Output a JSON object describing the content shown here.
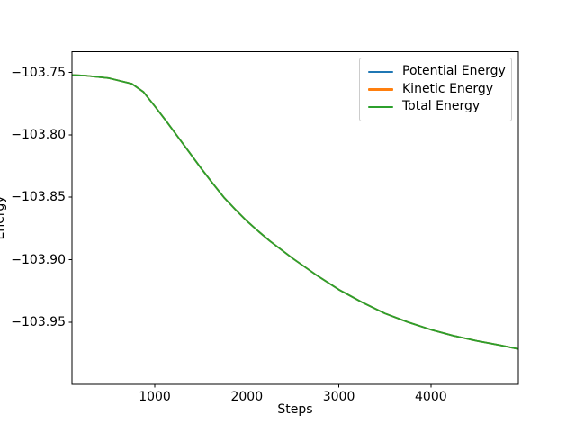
{
  "chart_data": {
    "type": "line",
    "title": "",
    "xlabel": "Steps",
    "ylabel": "Energy",
    "xlim": [
      100,
      4950
    ],
    "ylim": [
      -104.0,
      -103.7334
    ],
    "grid": false,
    "legend_position": "upper right",
    "xticks": {
      "values": [
        1000,
        2000,
        3000,
        4000
      ],
      "labels": [
        "1000",
        "2000",
        "3000",
        "4000"
      ]
    },
    "yticks": {
      "values": [
        -103.75,
        -103.8,
        -103.85,
        -103.9,
        -103.95
      ],
      "labels": [
        "−103.75",
        "−103.80",
        "−103.85",
        "−103.90",
        "−103.95"
      ]
    },
    "x": [
      100,
      250,
      500,
      750,
      875,
      1000,
      1125,
      1250,
      1375,
      1500,
      1625,
      1750,
      1875,
      2000,
      2125,
      2250,
      2500,
      2750,
      3000,
      3250,
      3500,
      3750,
      4000,
      4250,
      4500,
      4750,
      4950
    ],
    "series": [
      {
        "name": "Potential Energy",
        "color": "#1f77b4",
        "values": [
          -103.752,
          -103.7525,
          -103.7545,
          -103.759,
          -103.7655,
          -103.777,
          -103.789,
          -103.8015,
          -103.814,
          -103.8265,
          -103.8385,
          -103.85,
          -103.8598,
          -103.869,
          -103.8772,
          -103.885,
          -103.899,
          -103.912,
          -103.924,
          -103.934,
          -103.943,
          -103.95,
          -103.956,
          -103.961,
          -103.965,
          -103.9685,
          -103.9715
        ]
      },
      {
        "name": "Kinetic Energy",
        "color": "#ff7f0e",
        "values": [
          -103.752,
          -103.7525,
          -103.7545,
          -103.759,
          -103.7655,
          -103.777,
          -103.789,
          -103.8015,
          -103.814,
          -103.8265,
          -103.8385,
          -103.85,
          -103.8598,
          -103.869,
          -103.8772,
          -103.885,
          -103.899,
          -103.912,
          -103.924,
          -103.934,
          -103.943,
          -103.95,
          -103.956,
          -103.961,
          -103.965,
          -103.9685,
          -103.9715
        ]
      },
      {
        "name": "Total Energy",
        "color": "#2ca02c",
        "values": [
          -103.752,
          -103.7525,
          -103.7545,
          -103.759,
          -103.7655,
          -103.777,
          -103.789,
          -103.8015,
          -103.814,
          -103.8265,
          -103.8385,
          -103.85,
          -103.8598,
          -103.869,
          -103.8772,
          -103.885,
          -103.899,
          -103.912,
          -103.924,
          -103.934,
          -103.943,
          -103.95,
          -103.956,
          -103.961,
          -103.965,
          -103.9685,
          -103.9715
        ]
      }
    ],
    "colors": {
      "spine": "#000000",
      "text": "#000000",
      "legend_border": "#cccccc",
      "background": "#ffffff"
    }
  }
}
